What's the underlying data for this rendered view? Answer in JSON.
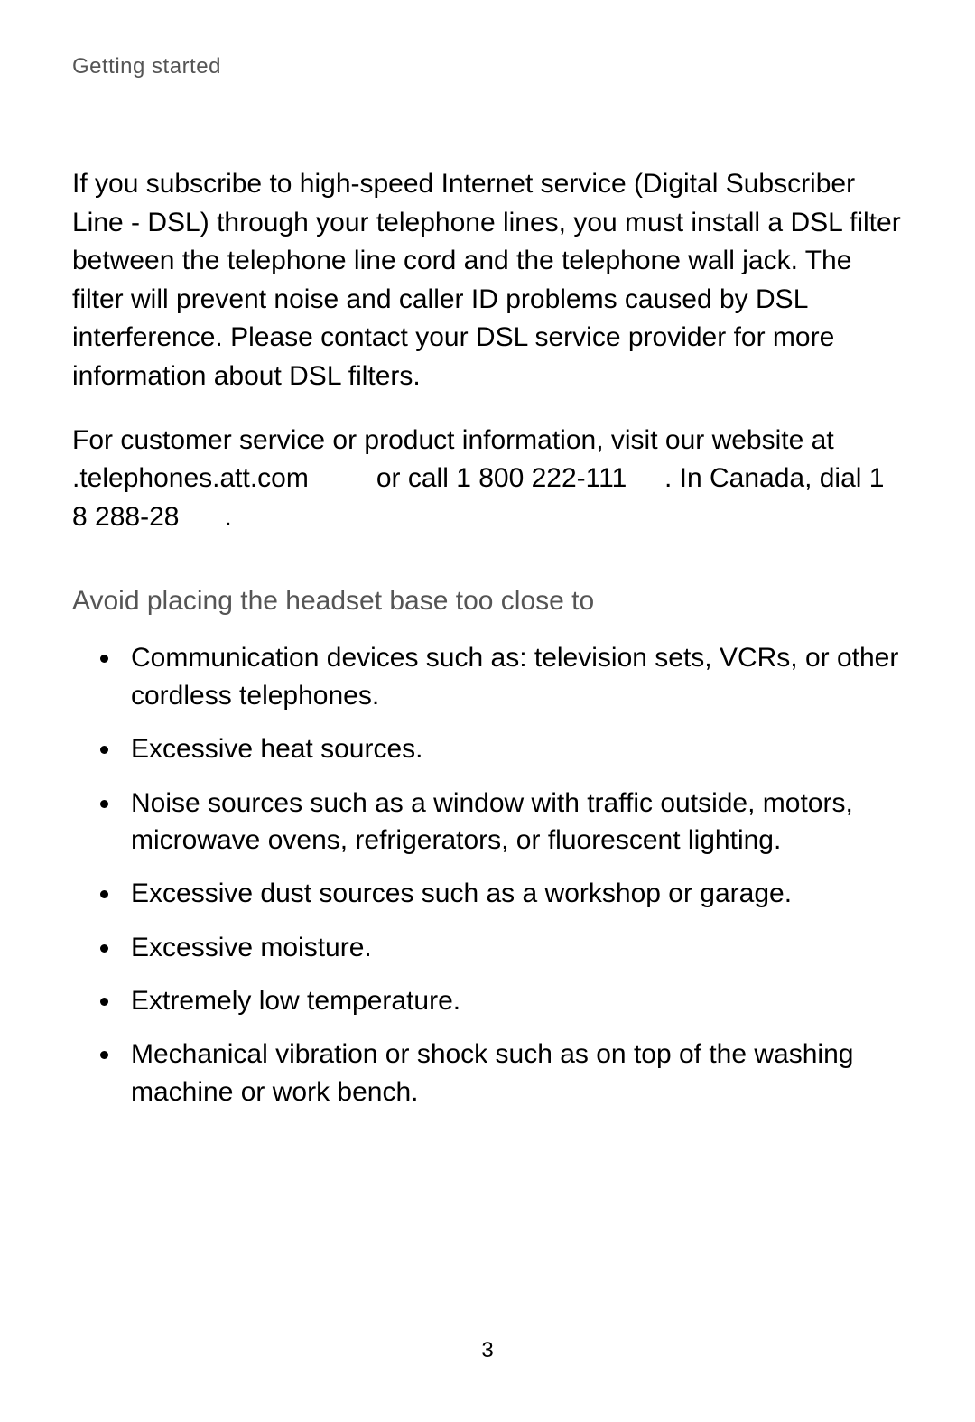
{
  "section_label": "Getting started",
  "paragraphs": {
    "dsl": "If you subscribe to high-speed Internet service (Digital Subscriber Line - DSL) through your telephone lines, you must install a DSL filter between the telephone line cord and the telephone wall jack. The filter will prevent noise and caller ID problems caused by DSL interference. Please contact your DSL service provider for more information about DSL filters.",
    "cs_prefix": "For customer service or product information, visit our website at ",
    "website": ".telephones.att.com",
    "cs_mid1": " or call ",
    "phone_us": "1 800 222-111",
    "cs_mid2": " . In Canada, dial ",
    "phone_ca": "1 8 288-28",
    "cs_suffix": " ."
  },
  "subheading": "Avoid placing the headset base too close to",
  "bullets": [
    "Communication devices such as: television sets, VCRs, or other cordless telephones.",
    "Excessive heat sources.",
    "Noise sources such as a window with traffic outside, motors, microwave ovens, refrigerators, or fluorescent lighting.",
    "Excessive dust sources such as a workshop or garage.",
    "Excessive moisture.",
    "Extremely low temperature.",
    "Mechanical vibration or shock such as on top of the washing machine or work bench."
  ],
  "page_number": "3"
}
